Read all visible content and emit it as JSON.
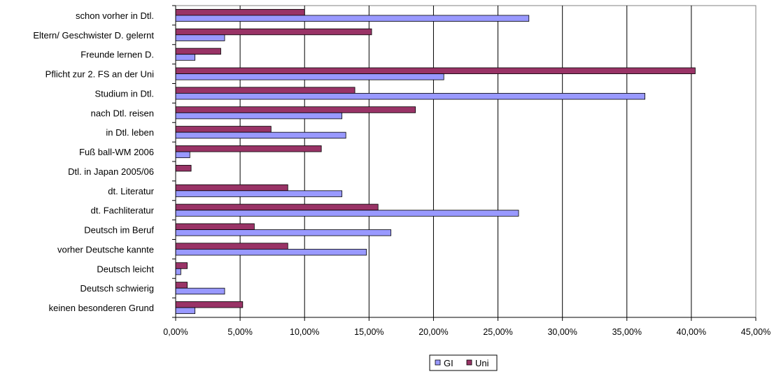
{
  "chart_data": {
    "type": "bar",
    "orientation": "horizontal",
    "categories": [
      "schon vorher in Dtl.",
      "Eltern/ Geschwister D. gelernt",
      "Freunde lernen D.",
      "Pflicht zur 2. FS an der Uni",
      "Studium in Dtl.",
      "nach Dtl. reisen",
      "in Dtl. leben",
      "Fuß ball-WM 2006",
      "Dtl. in Japan 2005/06",
      "dt. Literatur",
      "dt. Fachliteratur",
      "Deutsch im Beruf",
      "vorher Deutsche kannte",
      "Deutsch leicht",
      "Deutsch schwierig",
      "keinen besonderen Grund"
    ],
    "series": [
      {
        "name": "Uni",
        "color": "#993366",
        "values": [
          10.0,
          15.2,
          3.5,
          40.3,
          13.9,
          18.6,
          7.4,
          11.3,
          1.2,
          8.7,
          15.7,
          6.1,
          8.7,
          0.9,
          0.9,
          5.2
        ]
      },
      {
        "name": "GI",
        "color": "#9999ff",
        "values": [
          27.4,
          3.8,
          1.5,
          20.8,
          36.4,
          12.9,
          13.2,
          1.1,
          0.0,
          12.9,
          26.6,
          16.7,
          14.8,
          0.4,
          3.8,
          1.5
        ]
      }
    ],
    "x_ticks": [
      "0,00%",
      "5,00%",
      "10,00%",
      "15,00%",
      "20,00%",
      "25,00%",
      "30,00%",
      "35,00%",
      "40,00%",
      "45,00%"
    ],
    "xlim": [
      0,
      45
    ],
    "grid": true,
    "legend_position": "bottom",
    "legend": [
      "GI",
      "Uni"
    ]
  }
}
